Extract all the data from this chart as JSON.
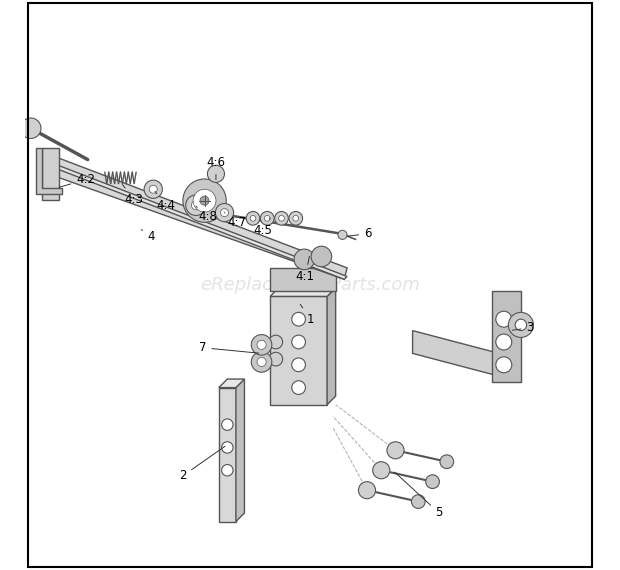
{
  "background_color": "#ffffff",
  "border_color": "#000000",
  "watermark": "eReplacementParts.com",
  "watermark_color": "#cccccc",
  "watermark_fontsize": 13,
  "line_color": "#555555",
  "line_width": 1.0,
  "label_fontsize": 8.5
}
